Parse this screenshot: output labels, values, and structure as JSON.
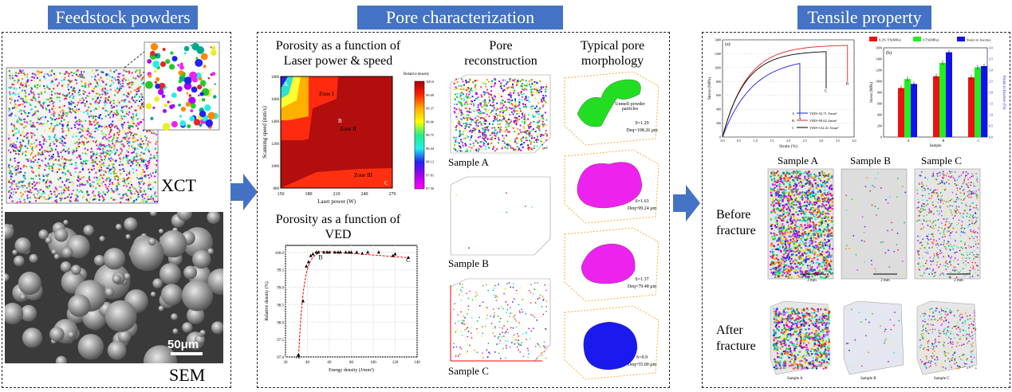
{
  "sections": {
    "feedstock": "Feedstock powders",
    "pore": "Pore characterization",
    "tensile": "Tensile property"
  },
  "feedstock": {
    "xct_label": "XCT",
    "sem_label": "SEM",
    "scale_bar": "50μm"
  },
  "pore": {
    "contour_title": "Porosity as a function of Laser power & speed",
    "ved_title": "Porosity as a function of VED",
    "recon_title": "Pore reconstruction",
    "morph_title": "Typical pore morphology",
    "samples": [
      "Sample A",
      "Sample B",
      "Sample C"
    ],
    "morphologies": [
      {
        "s": "S=1.29",
        "d": "Deq=108.26 μm",
        "note": "Unmelt powder particles",
        "color": "#22dd22"
      },
      {
        "s": "S=1.63",
        "d": "Deq=99.24 μm",
        "color": "#ee22ee"
      },
      {
        "s": "S=1.37",
        "d": "Deq=79.48 μm",
        "color": "#ee22ee"
      },
      {
        "s": "S=0.9",
        "d": "Deq=55.00 μm",
        "color": "#1a1aee"
      }
    ]
  },
  "tensile": {
    "samples": [
      "Sample A",
      "Sample B",
      "Sample C"
    ],
    "rows": [
      "Before fracture",
      "After fracture"
    ],
    "scale": "2 mm"
  },
  "chart_data": [
    {
      "type": "heatmap",
      "title": "Porosity as a function of Laser power & speed",
      "xlabel": "Laser power (W)",
      "ylabel": "Scanning speed (mm/s)",
      "xticks": [
        "150",
        "180",
        "210",
        "240",
        "270"
      ],
      "yticks": [
        "800",
        "1000",
        "1200",
        "1400",
        "1600",
        "1800"
      ],
      "xlim": [
        150,
        270
      ],
      "ylim": [
        800,
        1800
      ],
      "colorbar_label": "Relative density",
      "colorbar_ticks": [
        "100.0",
        "99.69",
        "99.37",
        "99.06",
        "98.75",
        "98.44",
        "98.12",
        "97.81",
        "97.50"
      ],
      "annotations": [
        "A",
        "B",
        "C",
        "Zone I",
        "Zone II",
        "Zone III"
      ]
    },
    {
      "type": "scatter",
      "title": "Porosity as a function of VED",
      "xlabel": "Energy density (J/mm³)",
      "ylabel": "Relative density (%)",
      "xlim": [
        20,
        140
      ],
      "ylim": [
        97.0,
        100.2
      ],
      "xticks": [
        "20",
        "40",
        "60",
        "80",
        "100",
        "120",
        "140"
      ],
      "yticks": [
        "97.0",
        "97.5",
        "98.0",
        "98.5",
        "99.0",
        "99.5",
        "100.0"
      ],
      "x": [
        32,
        36,
        39,
        41,
        43,
        45,
        48,
        50,
        55,
        58,
        60,
        65,
        68,
        70,
        75,
        78,
        80,
        85,
        90,
        95,
        105,
        118,
        120,
        132
      ],
      "y": [
        97.05,
        98.6,
        99.6,
        99.72,
        99.9,
        99.95,
        100,
        100,
        100,
        100,
        100,
        100,
        100,
        100,
        100,
        100,
        100,
        100,
        99.97,
        100,
        100,
        99.9,
        99.95,
        99.85
      ],
      "annotations": [
        "A",
        "B",
        "C"
      ]
    },
    {
      "type": "line",
      "label": "(a)",
      "xlabel": "Strain (%)",
      "ylabel": "Stress (MPa)",
      "xlim": [
        0,
        4
      ],
      "ylim": [
        0,
        1400
      ],
      "xticks": [
        "0.0",
        "0.5",
        "1.0",
        "1.5",
        "2.0",
        "2.5",
        "3.0",
        "3.5",
        "4.0"
      ],
      "yticks": [
        "0",
        "200",
        "400",
        "600",
        "800",
        "1000",
        "1200",
        "1400"
      ],
      "series": [
        {
          "name": "A",
          "legend": "VED=32.71 J/mm³",
          "color": "#1a1aee",
          "end_strain": 2.35,
          "end_stress": 1060,
          "k": 1.1
        },
        {
          "name": "B",
          "legend": "VED=58.62 J/mm³",
          "color": "#ee2222",
          "end_strain": 3.8,
          "end_stress": 1320,
          "k": 1.35
        },
        {
          "name": "C",
          "legend": "VED=132.41 J/mm³",
          "color": "#000000",
          "end_strain": 3.15,
          "end_stress": 1230,
          "k": 1.45
        }
      ]
    },
    {
      "type": "bar",
      "label": "(b)",
      "categories": [
        "A",
        "B",
        "C"
      ],
      "xlabel": "Sample",
      "ylabel": "Stress (MPa)",
      "ylabel_right": "Strain to fracture (%)",
      "ylim": [
        0,
        1600
      ],
      "ylim_right": [
        0,
        4.0
      ],
      "yticks": [
        "0",
        "200",
        "400",
        "600",
        "800",
        "1000",
        "1200",
        "1400",
        "1600"
      ],
      "yticks_right": [
        "0.0",
        "0.5",
        "1.0",
        "1.5",
        "2.0",
        "2.5",
        "3.0",
        "3.5",
        "4.0"
      ],
      "series": [
        {
          "name": "0.2% YS(MPa)",
          "color": "#ee1111",
          "values": [
            880,
            1090,
            1070
          ],
          "axis": "left"
        },
        {
          "name": "UTS(MPa)",
          "color": "#22ee22",
          "values": [
            1040,
            1330,
            1250
          ],
          "axis": "left"
        },
        {
          "name": "Strain to fracture",
          "color": "#1111ee",
          "values": [
            2.38,
            3.8,
            3.18
          ],
          "axis": "right"
        }
      ]
    }
  ]
}
